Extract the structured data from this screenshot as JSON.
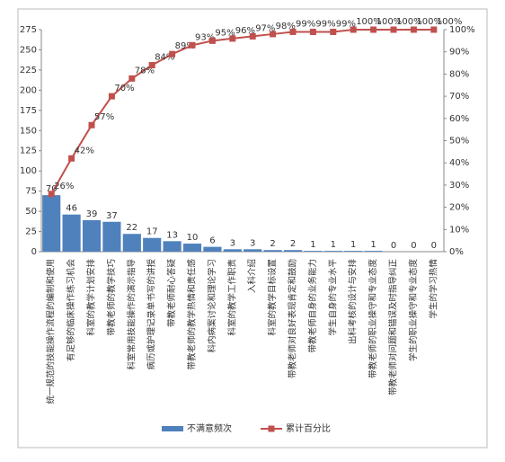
{
  "chart_data": {
    "type": "combo",
    "categories": [
      "统一规范的技能操作流程的编制和使用",
      "有足够的临床操作练习机会",
      "科室的教学计划安排",
      "带教老师的教学技巧",
      "科室常用技能操作的演示指导",
      "病历或护理记录单书写的讲授",
      "带教老师耐心答疑",
      "带教老师的教学热情和责任感",
      "科内病案讨论和理论学习",
      "科室的教学工作职责",
      "入科介绍",
      "科室的教学目标设置",
      "带教老师对良好表现肯定和鼓励",
      "带教老师自身的业务能力",
      "学生自身的专业水平",
      "出科考核的设计与安排",
      "带教老师的职业操守和专业态度",
      "带教老师对问题和错误及时指导纠正",
      "学生的职业操守和专业态度",
      "学生的学习热情"
    ],
    "series": [
      {
        "name": "不满意频次",
        "type": "bar",
        "color": "#4f81bd",
        "values": [
          70,
          46,
          39,
          37,
          22,
          17,
          13,
          10,
          6,
          3,
          3,
          2,
          2,
          1,
          1,
          1,
          1,
          0,
          0,
          0
        ]
      },
      {
        "name": "累计百分比",
        "type": "line",
        "axis": "y2",
        "color": "#c0504d",
        "values": [
          26,
          42,
          57,
          70,
          78,
          84,
          89,
          93,
          95,
          96,
          97,
          98,
          99,
          99,
          99,
          100,
          100,
          100,
          100,
          100
        ],
        "value_labels": [
          "26%",
          "42%",
          "57%",
          "70%",
          "78%",
          "84%",
          "89%",
          "93%",
          "95%",
          "96%",
          "97%",
          "98%",
          "99%",
          "99%",
          "99%",
          "100%",
          "100%",
          "100%",
          "100%",
          "100%"
        ]
      }
    ],
    "ylim": [
      0,
      275
    ],
    "yticks": [
      0,
      25,
      50,
      75,
      100,
      125,
      150,
      175,
      200,
      225,
      250,
      275
    ],
    "y2lim": [
      0,
      100
    ],
    "y2ticks": [
      {
        "value": 0,
        "label": "0%"
      },
      {
        "value": 10,
        "label": "10%"
      },
      {
        "value": 20,
        "label": "20%"
      },
      {
        "value": 30,
        "label": "30%"
      },
      {
        "value": 40,
        "label": "40%"
      },
      {
        "value": 50,
        "label": "50%"
      },
      {
        "value": 60,
        "label": "60%"
      },
      {
        "value": 70,
        "label": "70%"
      },
      {
        "value": 80,
        "label": "80%"
      },
      {
        "value": 90,
        "label": "90%"
      },
      {
        "value": 100,
        "label": "100%"
      }
    ],
    "legend": "bottom"
  }
}
